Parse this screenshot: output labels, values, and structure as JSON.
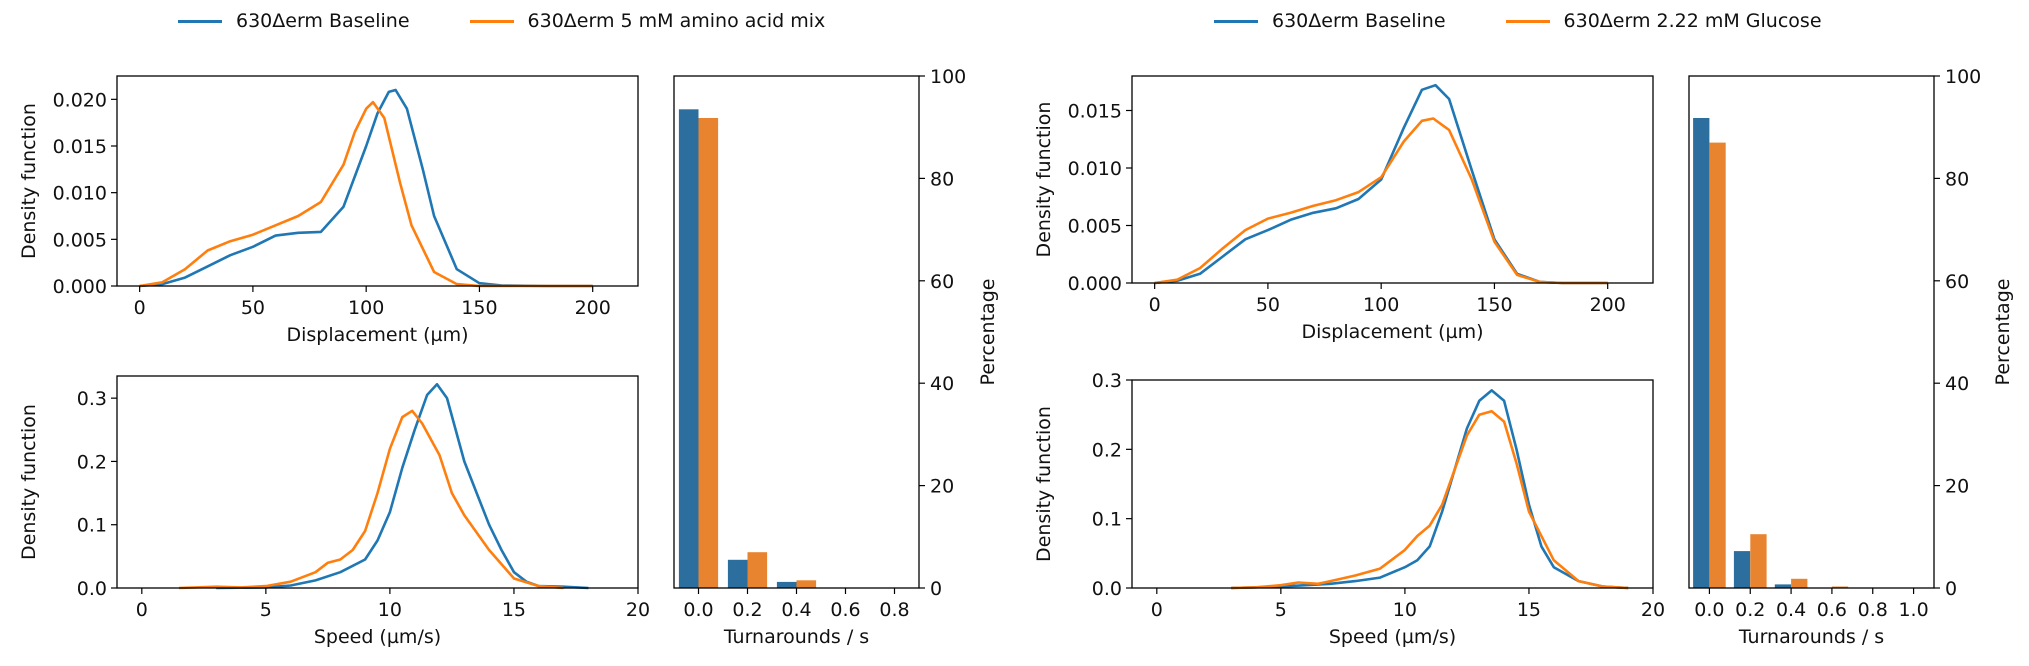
{
  "colors": {
    "baseline": "#1f77b4",
    "treated": "#ff7f0e",
    "bar_baseline": "#2c6e9e",
    "bar_treated": "#e8842f"
  },
  "panels": [
    {
      "legend": [
        "630Δerm Baseline",
        "630Δerm 5 mM amino acid mix"
      ]
    },
    {
      "legend": [
        "630Δerm Baseline",
        "630Δerm 2.22 mM Glucose"
      ]
    }
  ],
  "chart_data": [
    {
      "type": "line",
      "panel": "left",
      "xlabel": "Displacement (µm)",
      "ylabel": "Density function",
      "xlim": [
        -10,
        220
      ],
      "ylim": [
        0,
        0.0225
      ],
      "xticks": [
        0,
        50,
        100,
        150,
        200
      ],
      "yticks": [
        0.0,
        0.005,
        0.01,
        0.015,
        0.02
      ],
      "ytick_labels": [
        "0.000",
        "0.005",
        "0.010",
        "0.015",
        "0.020"
      ],
      "series": [
        {
          "name": "630Δerm Baseline",
          "x": [
            0,
            10,
            20,
            30,
            40,
            50,
            60,
            70,
            80,
            90,
            100,
            105,
            110,
            113,
            118,
            125,
            130,
            140,
            150,
            160,
            180,
            200
          ],
          "y": [
            0.0,
            0.0002,
            0.0009,
            0.0021,
            0.0033,
            0.0042,
            0.0054,
            0.0057,
            0.0058,
            0.0085,
            0.015,
            0.0185,
            0.0208,
            0.021,
            0.019,
            0.0125,
            0.0075,
            0.0018,
            0.0003,
            5e-05,
            0.0,
            0.0
          ]
        },
        {
          "name": "630Δerm 5 mM amino acid mix",
          "x": [
            0,
            10,
            20,
            30,
            40,
            50,
            60,
            70,
            80,
            90,
            95,
            100,
            103,
            108,
            115,
            120,
            130,
            140,
            150,
            160,
            200
          ],
          "y": [
            0.0,
            0.0004,
            0.0018,
            0.0038,
            0.0048,
            0.0055,
            0.0065,
            0.0075,
            0.009,
            0.013,
            0.0165,
            0.019,
            0.0197,
            0.018,
            0.011,
            0.0065,
            0.0015,
            0.0002,
            0.0,
            0.0,
            0.0
          ]
        }
      ]
    },
    {
      "type": "line",
      "panel": "left",
      "xlabel": "Speed (µm/s)",
      "ylabel": "Density function",
      "xlim": [
        -1,
        20
      ],
      "ylim": [
        0,
        0.335
      ],
      "xticks": [
        0,
        5,
        10,
        15,
        20
      ],
      "yticks": [
        0.0,
        0.1,
        0.2,
        0.3
      ],
      "ytick_labels": [
        "0.0",
        "0.1",
        "0.2",
        "0.3"
      ],
      "series": [
        {
          "name": "630Δerm Baseline",
          "x": [
            3,
            5,
            6,
            7,
            8,
            9,
            9.5,
            10,
            10.5,
            11,
            11.5,
            11.9,
            12.3,
            13,
            13.5,
            14,
            14.5,
            15,
            15.5,
            16,
            17,
            18
          ],
          "y": [
            0.0,
            0.001,
            0.004,
            0.012,
            0.025,
            0.045,
            0.075,
            0.12,
            0.19,
            0.25,
            0.305,
            0.322,
            0.3,
            0.2,
            0.15,
            0.1,
            0.06,
            0.025,
            0.01,
            0.003,
            0.002,
            0.0
          ]
        },
        {
          "name": "630Δerm 5 mM amino acid mix",
          "x": [
            1.5,
            3,
            4,
            5,
            6,
            7,
            7.5,
            8,
            8.5,
            9,
            9.5,
            10,
            10.5,
            10.9,
            11.3,
            12,
            12.5,
            13,
            14,
            15,
            16,
            17
          ],
          "y": [
            0.0,
            0.002,
            0.001,
            0.003,
            0.01,
            0.025,
            0.04,
            0.045,
            0.06,
            0.09,
            0.15,
            0.22,
            0.27,
            0.28,
            0.26,
            0.21,
            0.15,
            0.115,
            0.06,
            0.015,
            0.003,
            0.0
          ]
        }
      ]
    },
    {
      "type": "bar",
      "panel": "left",
      "xlabel": "Turnarounds / s",
      "ylabel": "Percentage",
      "xlim": [
        -0.1,
        0.9
      ],
      "ylim": [
        0,
        100
      ],
      "xticks": [
        0.0,
        0.2,
        0.4,
        0.6,
        0.8
      ],
      "xtick_labels": [
        "0.0",
        "0.2",
        "0.4",
        "0.6",
        "0.8"
      ],
      "yticks": [
        0,
        20,
        40,
        60,
        80,
        100
      ],
      "categories": [
        0.0,
        0.2,
        0.4
      ],
      "series": [
        {
          "name": "630Δerm Baseline",
          "values": [
            93.5,
            5.5,
            1.2
          ]
        },
        {
          "name": "630Δerm 5 mM amino acid mix",
          "values": [
            91.8,
            7.0,
            1.5
          ]
        }
      ]
    },
    {
      "type": "line",
      "panel": "right",
      "xlabel": "Displacement (µm)",
      "ylabel": "Density function",
      "xlim": [
        -10,
        220
      ],
      "ylim": [
        0,
        0.018
      ],
      "xticks": [
        0,
        50,
        100,
        150,
        200
      ],
      "yticks": [
        0.0,
        0.005,
        0.01,
        0.015
      ],
      "ytick_labels": [
        "0.000",
        "0.005",
        "0.010",
        "0.015"
      ],
      "series": [
        {
          "name": "630Δerm Baseline",
          "x": [
            0,
            10,
            20,
            30,
            40,
            50,
            60,
            70,
            80,
            90,
            100,
            110,
            118,
            124,
            130,
            140,
            150,
            160,
            170,
            180,
            200
          ],
          "y": [
            0.0,
            0.0002,
            0.0008,
            0.0023,
            0.0038,
            0.0046,
            0.0055,
            0.0061,
            0.0065,
            0.0073,
            0.009,
            0.0135,
            0.0168,
            0.0172,
            0.016,
            0.0098,
            0.0038,
            0.0008,
            0.0001,
            0.0,
            0.0
          ]
        },
        {
          "name": "630Δerm 2.22 mM Glucose",
          "x": [
            0,
            10,
            20,
            30,
            40,
            50,
            60,
            70,
            80,
            90,
            100,
            110,
            118,
            123,
            130,
            140,
            150,
            160,
            170,
            180,
            200
          ],
          "y": [
            0.0,
            0.0003,
            0.0013,
            0.003,
            0.0046,
            0.0056,
            0.0061,
            0.0067,
            0.0072,
            0.0079,
            0.0092,
            0.0123,
            0.0141,
            0.0143,
            0.0133,
            0.009,
            0.0036,
            0.0007,
            0.0001,
            0.0,
            0.0
          ]
        }
      ]
    },
    {
      "type": "line",
      "panel": "right",
      "xlabel": "Speed (µm/s)",
      "ylabel": "Density function",
      "xlim": [
        -1,
        20
      ],
      "ylim": [
        0,
        0.3
      ],
      "xticks": [
        0,
        5,
        10,
        15,
        20
      ],
      "yticks": [
        0.0,
        0.1,
        0.2,
        0.3
      ],
      "ytick_labels": [
        "0.0",
        "0.1",
        "0.2",
        "0.3"
      ],
      "series": [
        {
          "name": "630Δerm Baseline",
          "x": [
            3,
            5,
            6,
            7,
            8,
            9,
            10,
            10.5,
            11,
            11.5,
            12,
            12.5,
            13,
            13.5,
            14,
            14.5,
            15,
            15.5,
            16,
            17,
            18,
            19
          ],
          "y": [
            0.0,
            0.002,
            0.004,
            0.006,
            0.01,
            0.015,
            0.03,
            0.04,
            0.06,
            0.11,
            0.17,
            0.23,
            0.27,
            0.285,
            0.27,
            0.2,
            0.12,
            0.06,
            0.03,
            0.01,
            0.002,
            0.0
          ]
        },
        {
          "name": "630Δerm 2.22 mM Glucose",
          "x": [
            3,
            4,
            5,
            5.7,
            6.5,
            7,
            8,
            9,
            10,
            10.5,
            11,
            11.5,
            12,
            12.5,
            13,
            13.5,
            14,
            14.5,
            15,
            16,
            17,
            18,
            19
          ],
          "y": [
            0.0,
            0.001,
            0.004,
            0.008,
            0.006,
            0.01,
            0.018,
            0.028,
            0.055,
            0.075,
            0.09,
            0.12,
            0.17,
            0.22,
            0.25,
            0.255,
            0.24,
            0.18,
            0.11,
            0.04,
            0.01,
            0.002,
            0.0
          ]
        }
      ]
    },
    {
      "type": "bar",
      "panel": "right",
      "xlabel": "Turnarounds / s",
      "ylabel": "Percentage",
      "xlim": [
        -0.1,
        1.1
      ],
      "ylim": [
        0,
        100
      ],
      "xticks": [
        0.0,
        0.2,
        0.4,
        0.6,
        0.8,
        1.0
      ],
      "xtick_labels": [
        "0.0",
        "0.2",
        "0.4",
        "0.6",
        "0.8",
        "1.0"
      ],
      "yticks": [
        0,
        20,
        40,
        60,
        80,
        100
      ],
      "categories": [
        0.0,
        0.2,
        0.4,
        0.6
      ],
      "series": [
        {
          "name": "630Δerm Baseline",
          "values": [
            91.8,
            7.2,
            0.7,
            0.1
          ]
        },
        {
          "name": "630Δerm 2.22 mM Glucose",
          "values": [
            87.0,
            10.5,
            1.8,
            0.3
          ]
        }
      ]
    }
  ]
}
